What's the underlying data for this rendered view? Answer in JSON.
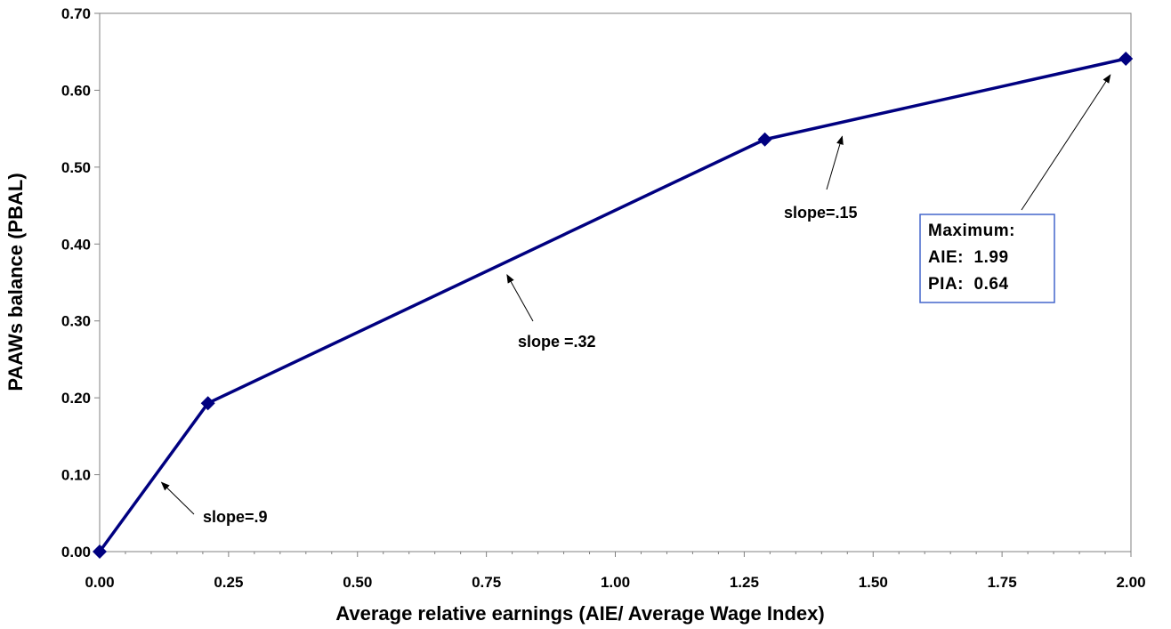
{
  "chart_data": {
    "type": "line",
    "xlabel": "Average relative earnings (AIE/ Average Wage Index)",
    "ylabel": "PAAWs balance (PBAL)",
    "xlim": [
      0,
      2.0
    ],
    "ylim": [
      0,
      0.7
    ],
    "x_ticks": [
      "0.00",
      "0.25",
      "0.50",
      "0.75",
      "1.00",
      "1.25",
      "1.50",
      "1.75",
      "2.00"
    ],
    "y_ticks": [
      "0.00",
      "0.10",
      "0.20",
      "0.30",
      "0.40",
      "0.50",
      "0.60",
      "0.70"
    ],
    "grid": false,
    "series": [
      {
        "x": [
          0.0,
          0.21,
          1.29,
          1.99
        ],
        "y": [
          0.0,
          0.193,
          0.536,
          0.641
        ],
        "color": "#000080",
        "marker": "diamond"
      }
    ],
    "annotations": [
      {
        "text": "slope=.9",
        "arrow_to": [
          0.12,
          0.09
        ]
      },
      {
        "text": "slope =.32",
        "arrow_to": [
          0.79,
          0.36
        ]
      },
      {
        "text": "slope=.15",
        "arrow_to": [
          1.44,
          0.54
        ]
      }
    ],
    "max_box": {
      "lines": [
        "Maximum:",
        "AIE:  1.99",
        "PIA:  0.64"
      ],
      "arrow_to": [
        1.96,
        0.62
      ],
      "border_color": "#4466cc"
    }
  }
}
